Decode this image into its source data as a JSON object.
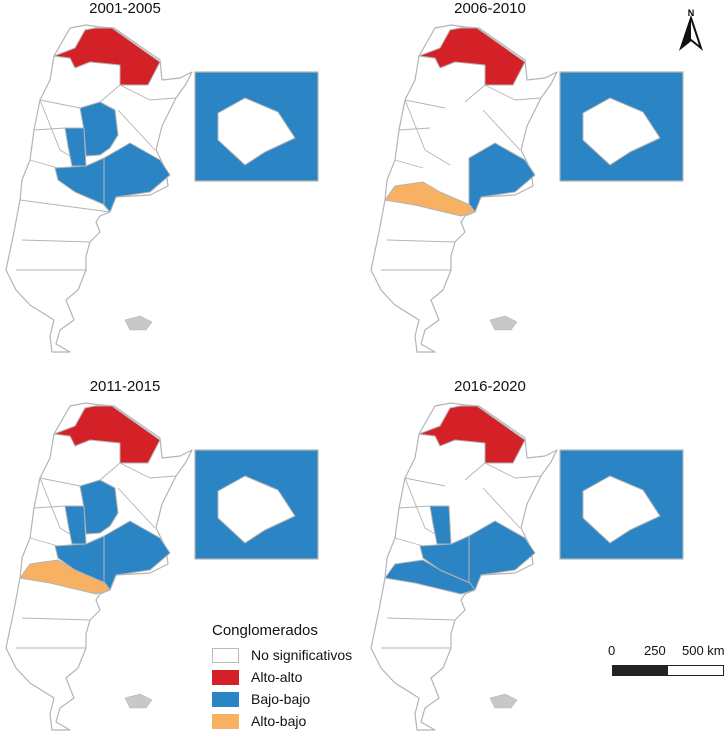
{
  "colors": {
    "Alto-alto": "#d42027",
    "Bajo-bajo": "#2b84c4",
    "Alto-bajo": "#f8b062",
    "No significativos": "#ffffff",
    "border": "#b4b4b4"
  },
  "panels": [
    {
      "title": "2001-2005",
      "fills": {
        "norte": "Alto-alto",
        "cordoba": "Bajo-bajo",
        "san_luis": "Bajo-bajo",
        "la_pampa": "Bajo-bajo",
        "buenos_aires": "Bajo-bajo",
        "rio_negro": "No significativos",
        "inset": "Bajo-bajo"
      }
    },
    {
      "title": "2006-2010",
      "fills": {
        "norte": "Alto-alto",
        "cordoba": "No significativos",
        "san_luis": "No significativos",
        "la_pampa": "No significativos",
        "buenos_aires": "Bajo-bajo",
        "rio_negro": "Alto-bajo",
        "inset": "Bajo-bajo"
      }
    },
    {
      "title": "2011-2015",
      "fills": {
        "norte": "Alto-alto",
        "cordoba": "Bajo-bajo",
        "san_luis": "Bajo-bajo",
        "la_pampa": "Bajo-bajo",
        "buenos_aires": "Bajo-bajo",
        "rio_negro": "Alto-bajo",
        "inset": "Bajo-bajo"
      }
    },
    {
      "title": "2016-2020",
      "fills": {
        "norte": "Alto-alto",
        "cordoba": "No significativos",
        "san_luis": "Bajo-bajo",
        "la_pampa": "Bajo-bajo",
        "buenos_aires": "Bajo-bajo",
        "rio_negro": "Bajo-bajo",
        "inset": "Bajo-bajo"
      }
    }
  ],
  "legend": {
    "title": "Conglomerados",
    "items": [
      "No significativos",
      "Alto-alto",
      "Bajo-bajo",
      "Alto-bajo"
    ]
  },
  "scale": {
    "labels": [
      "0",
      "250",
      "500 km"
    ]
  },
  "north": {
    "label": "N"
  }
}
